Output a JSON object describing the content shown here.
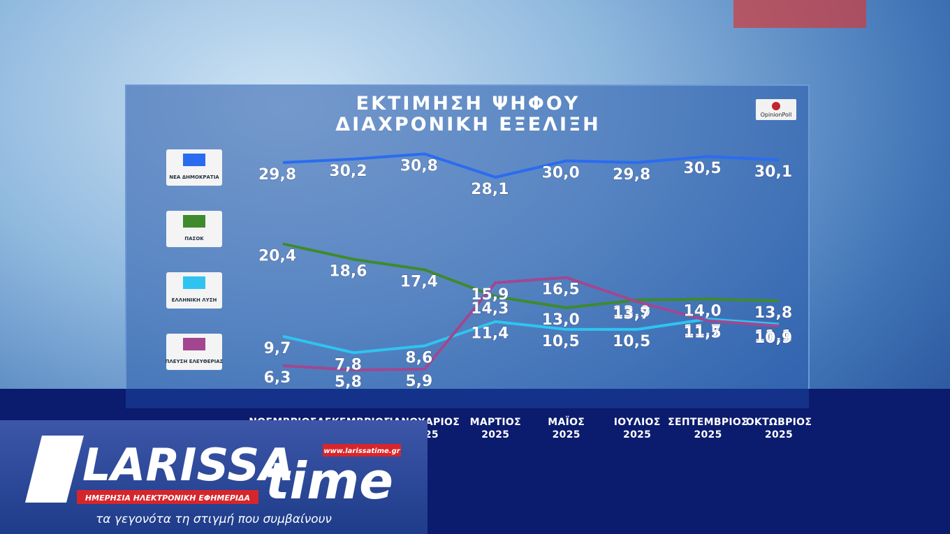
{
  "chart_data": {
    "type": "line",
    "title": "ΕΚΤΙΜΗΣΗ ΨΗΦΟΥ",
    "subtitle": "ΔΙΑΧΡΟΝΙΚΗ ΕΞΕΛΙΞΗ",
    "source": "OpinionPoll",
    "categories": [
      "ΝΟΕΜΒΡΙΟΣ",
      "ΔΕΚΕΜΒΡΙΟΣ",
      "ΙΑΝΟΥΑΡΙΟΣ\n2025",
      "ΜΑΡΤΙΟΣ\n2025",
      "ΜΑΪΟΣ\n2025",
      "ΙΟΥΛΙΟΣ\n2025",
      "ΣΕΠΤΕΜΒΡΙΟΣ\n2025",
      "ΟΚΤΩΒΡΙΟΣ\n2025"
    ],
    "ylim": [
      5,
      31
    ],
    "series": [
      {
        "name": "ΝΕΑ ΔΗΜΟΚΡΑΤΙΑ",
        "color": "#2a6cf0",
        "values": [
          29.8,
          30.2,
          30.8,
          28.1,
          30.0,
          29.8,
          30.5,
          30.1
        ],
        "value_labels": [
          "29,8",
          "30,2",
          "30,8",
          "28,1",
          "30,0",
          "29,8",
          "30,5",
          "30,1"
        ]
      },
      {
        "name": "ΠΑΣΟΚ",
        "color": "#3f8a2c",
        "values": [
          20.4,
          18.6,
          17.4,
          14.3,
          13.0,
          13.9,
          14.0,
          13.8
        ],
        "value_labels": [
          "20,4",
          "18,6",
          "17,4",
          "14,3",
          "13,0",
          "13,9",
          "14,0",
          "13,8"
        ]
      },
      {
        "name": "ΕΛΛΗΝΙΚΗ ΛΥΣΗ",
        "color": "#2fc4f0",
        "values": [
          9.7,
          7.8,
          8.6,
          11.4,
          10.5,
          10.5,
          11.7,
          11.1
        ],
        "value_labels": [
          "9,7",
          "7,8",
          "8,6",
          "11,4",
          "10,5",
          "10,5",
          "11,7",
          "11,1"
        ]
      },
      {
        "name": "ΠΛΕΥΣΗ ΕΛΕΥΘΕΡΙΑΣ",
        "color": "#a2478f",
        "values": [
          6.3,
          5.8,
          5.9,
          15.9,
          16.5,
          13.7,
          11.5,
          10.9
        ],
        "value_labels": [
          "6,3",
          "5,8",
          "5,9",
          "15,9",
          "16,5",
          "13,7",
          "11,5",
          "10,9"
        ]
      }
    ]
  },
  "branding": {
    "site": "www.larissatime.gr",
    "name": "LARISSA",
    "name2": "time",
    "tagline": "ΗΜΕΡΗΣΙΑ ΗΛΕΚΤΡΟΝΙΚΗ ΕΦΗΜΕΡΙΔΑ",
    "slogan": "τα γεγονότα τη στιγμή που συμβαίνουν"
  }
}
